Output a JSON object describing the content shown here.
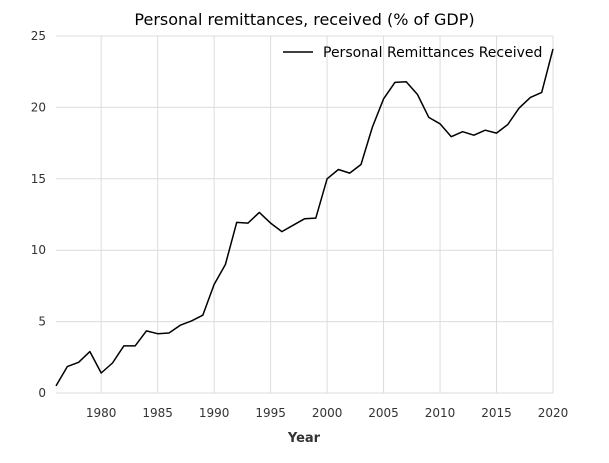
{
  "chart_data": {
    "type": "line",
    "title": "Personal remittances, received (% of GDP)",
    "xlabel": "Year",
    "ylabel": "",
    "xlim": [
      1976,
      2020
    ],
    "ylim": [
      0,
      25
    ],
    "xticks": [
      1980,
      1985,
      1990,
      1995,
      2000,
      2005,
      2010,
      2015,
      2020
    ],
    "yticks": [
      0,
      5,
      10,
      15,
      20,
      25
    ],
    "grid": true,
    "legend_position": "top-right",
    "series": [
      {
        "name": "Personal Remittances Received",
        "color": "#000000",
        "x": [
          1976,
          1977,
          1978,
          1979,
          1980,
          1981,
          1982,
          1983,
          1984,
          1985,
          1986,
          1987,
          1988,
          1989,
          1990,
          1991,
          1992,
          1993,
          1994,
          1995,
          1996,
          1997,
          1998,
          1999,
          2000,
          2001,
          2002,
          2003,
          2004,
          2005,
          2006,
          2007,
          2008,
          2009,
          2010,
          2011,
          2012,
          2013,
          2014,
          2015,
          2016,
          2017,
          2018,
          2019,
          2020
        ],
        "y": [
          0.5,
          1.85,
          2.15,
          2.9,
          1.4,
          2.1,
          3.3,
          3.3,
          4.35,
          4.15,
          4.2,
          4.75,
          5.05,
          5.45,
          7.6,
          9.0,
          11.95,
          11.9,
          12.65,
          11.9,
          11.3,
          11.75,
          12.2,
          12.25,
          15.0,
          15.65,
          15.4,
          16.0,
          18.6,
          20.6,
          21.75,
          21.8,
          20.9,
          19.3,
          18.85,
          17.95,
          18.3,
          18.05,
          18.4,
          18.2,
          18.8,
          19.95,
          20.7,
          21.05,
          24.1
        ]
      }
    ]
  }
}
